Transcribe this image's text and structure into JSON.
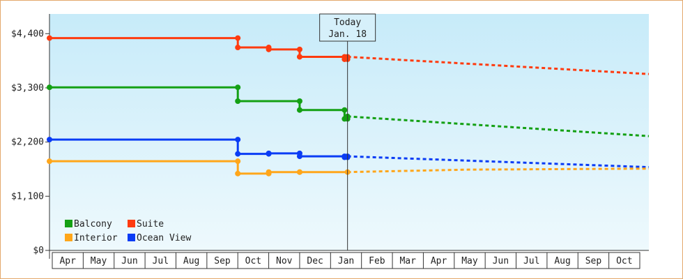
{
  "chart_data": {
    "type": "line",
    "title": "",
    "xlabel": "",
    "ylabel": "",
    "x_axis": {
      "type": "month",
      "labels": [
        "Apr",
        "May",
        "Jun",
        "Jul",
        "Aug",
        "Sep",
        "Oct",
        "Nov",
        "Dec",
        "Jan",
        "Feb",
        "Mar",
        "Apr",
        "May",
        "Jun",
        "Jul",
        "Aug",
        "Sep",
        "Oct"
      ],
      "range": [
        "Apr",
        "Oct"
      ]
    },
    "y_axis": {
      "ylim": [
        0,
        4800
      ],
      "ticks": [
        0,
        1100,
        2200,
        3300,
        4400
      ],
      "tick_labels": [
        "$0",
        "$1,100",
        "$2,200",
        "$3,300",
        "$4,400"
      ]
    },
    "grid": false,
    "legend": {
      "placement": "bottom-left",
      "entries": [
        {
          "name": "Balcony",
          "color": "#14a014"
        },
        {
          "name": "Suite",
          "color": "#ff3b0f"
        },
        {
          "name": "Interior",
          "color": "#ffa61a"
        },
        {
          "name": "Ocean View",
          "color": "#0a3cf5"
        }
      ]
    },
    "annotation": {
      "line1": "Today",
      "line2": "Jan. 18",
      "x": "Jan 18"
    },
    "series": [
      {
        "name": "Suite",
        "color": "#ff3b0f",
        "points": [
          [
            "Apr 1",
            4310
          ],
          [
            "Oct 1",
            4310
          ],
          [
            "Oct 1",
            4120
          ],
          [
            "Nov 1",
            4120
          ],
          [
            "Nov 1",
            4080
          ],
          [
            "Dec 1",
            4080
          ],
          [
            "Dec 1",
            3930
          ],
          [
            "Jan 15",
            3930
          ],
          [
            "Jan 15",
            3880
          ],
          [
            "Jan 18",
            3880
          ],
          [
            "Jan 18",
            3930
          ]
        ],
        "forecast": [
          [
            "Jan 18",
            3930
          ],
          [
            "Nov 1",
            3580
          ]
        ]
      },
      {
        "name": "Balcony",
        "color": "#14a014",
        "points": [
          [
            "Apr 1",
            3310
          ],
          [
            "Oct 1",
            3310
          ],
          [
            "Oct 1",
            3030
          ],
          [
            "Dec 1",
            3030
          ],
          [
            "Dec 1",
            2850
          ],
          [
            "Jan 15",
            2850
          ],
          [
            "Jan 15",
            2670
          ],
          [
            "Jan 18",
            2670
          ],
          [
            "Jan 18",
            2720
          ]
        ],
        "forecast": [
          [
            "Jan 18",
            2720
          ],
          [
            "Nov 1",
            2320
          ]
        ]
      },
      {
        "name": "Ocean View",
        "color": "#0a3cf5",
        "points": [
          [
            "Apr 1",
            2250
          ],
          [
            "Oct 1",
            2250
          ],
          [
            "Oct 1",
            1960
          ],
          [
            "Nov 1",
            1960
          ],
          [
            "Nov 1",
            1970
          ],
          [
            "Dec 1",
            1970
          ],
          [
            "Dec 1",
            1910
          ],
          [
            "Jan 15",
            1910
          ],
          [
            "Jan 15",
            1890
          ],
          [
            "Jan 18",
            1890
          ],
          [
            "Jan 18",
            1910
          ]
        ],
        "forecast": [
          [
            "Jan 18",
            1910
          ],
          [
            "Nov 1",
            1690
          ]
        ]
      },
      {
        "name": "Interior",
        "color": "#ffa61a",
        "points": [
          [
            "Apr 1",
            1810
          ],
          [
            "Oct 1",
            1810
          ],
          [
            "Oct 1",
            1560
          ],
          [
            "Nov 1",
            1560
          ],
          [
            "Nov 1",
            1590
          ],
          [
            "Dec 1",
            1590
          ],
          [
            "Dec 1",
            1590
          ],
          [
            "Jan 18",
            1590
          ]
        ],
        "forecast": [
          [
            "Jan 18",
            1590
          ],
          [
            "May 15",
            1640
          ],
          [
            "Nov 1",
            1660
          ]
        ]
      }
    ]
  }
}
